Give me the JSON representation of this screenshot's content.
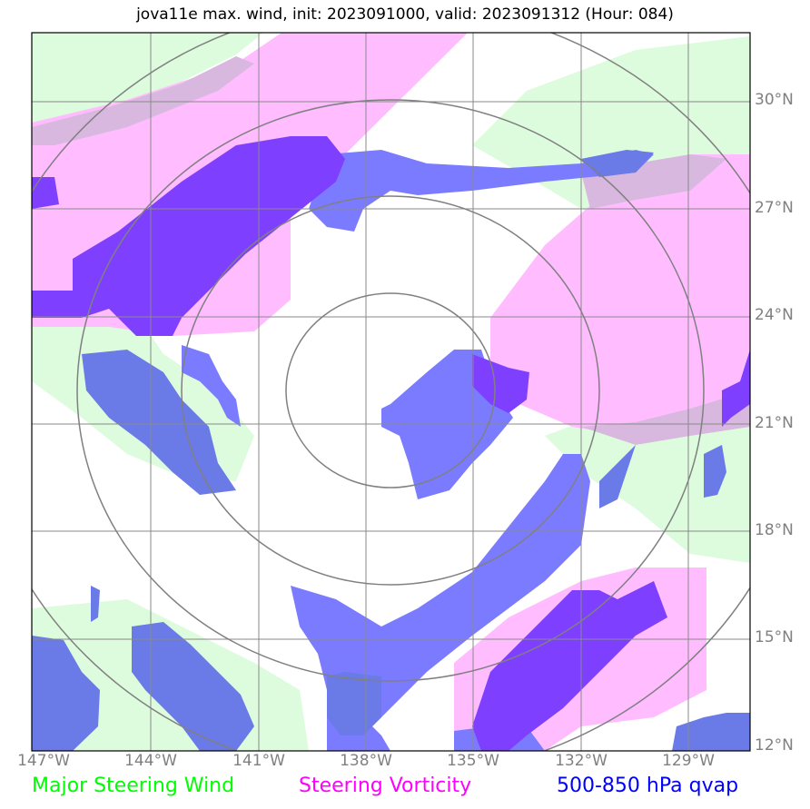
{
  "title": "jova11e max. wind, init: 2023091000, valid: 2023091312 (Hour: 084)",
  "map": {
    "lon_range": [
      -147.0,
      -127.0
    ],
    "lat_range": [
      12.0,
      32.0
    ],
    "lat_ticks": [
      {
        "value": 30,
        "label": "30°N"
      },
      {
        "value": 27,
        "label": "27°N"
      },
      {
        "value": 24,
        "label": "24°N"
      },
      {
        "value": 21,
        "label": "21°N"
      },
      {
        "value": 18,
        "label": "18°N"
      },
      {
        "value": 15,
        "label": "15°N"
      },
      {
        "value": 12,
        "label": "12°N"
      }
    ],
    "lon_ticks": [
      {
        "value": -147,
        "label": "147°W"
      },
      {
        "value": -144,
        "label": "144°W"
      },
      {
        "value": -141,
        "label": "141°W"
      },
      {
        "value": -138,
        "label": "138°W"
      },
      {
        "value": -135,
        "label": "135°W"
      },
      {
        "value": -132,
        "label": "132°W"
      },
      {
        "value": -129,
        "label": "129°W"
      }
    ],
    "storm_center": {
      "lon": -137.4,
      "lat": 21.9
    },
    "range_rings_deg": [
      2.9,
      5.8,
      8.7,
      11.6
    ],
    "colors": {
      "steering_wind": "#ddfbdd",
      "vorticity": "#ffbcff",
      "qvap": "#7b7bff",
      "qvap_dark": "#6a7ae6",
      "overlap": "#7f3fff",
      "overlap_soft": "#d8b8de",
      "gridline": "#8a8a8a",
      "ring": "#808080"
    }
  },
  "legend": [
    {
      "label": "Major Steering Wind",
      "color": "#00ff00"
    },
    {
      "label": "Steering Vorticity",
      "color": "#ff00ff"
    },
    {
      "label": "500-850 hPa qvap",
      "color": "#0000ff"
    }
  ]
}
